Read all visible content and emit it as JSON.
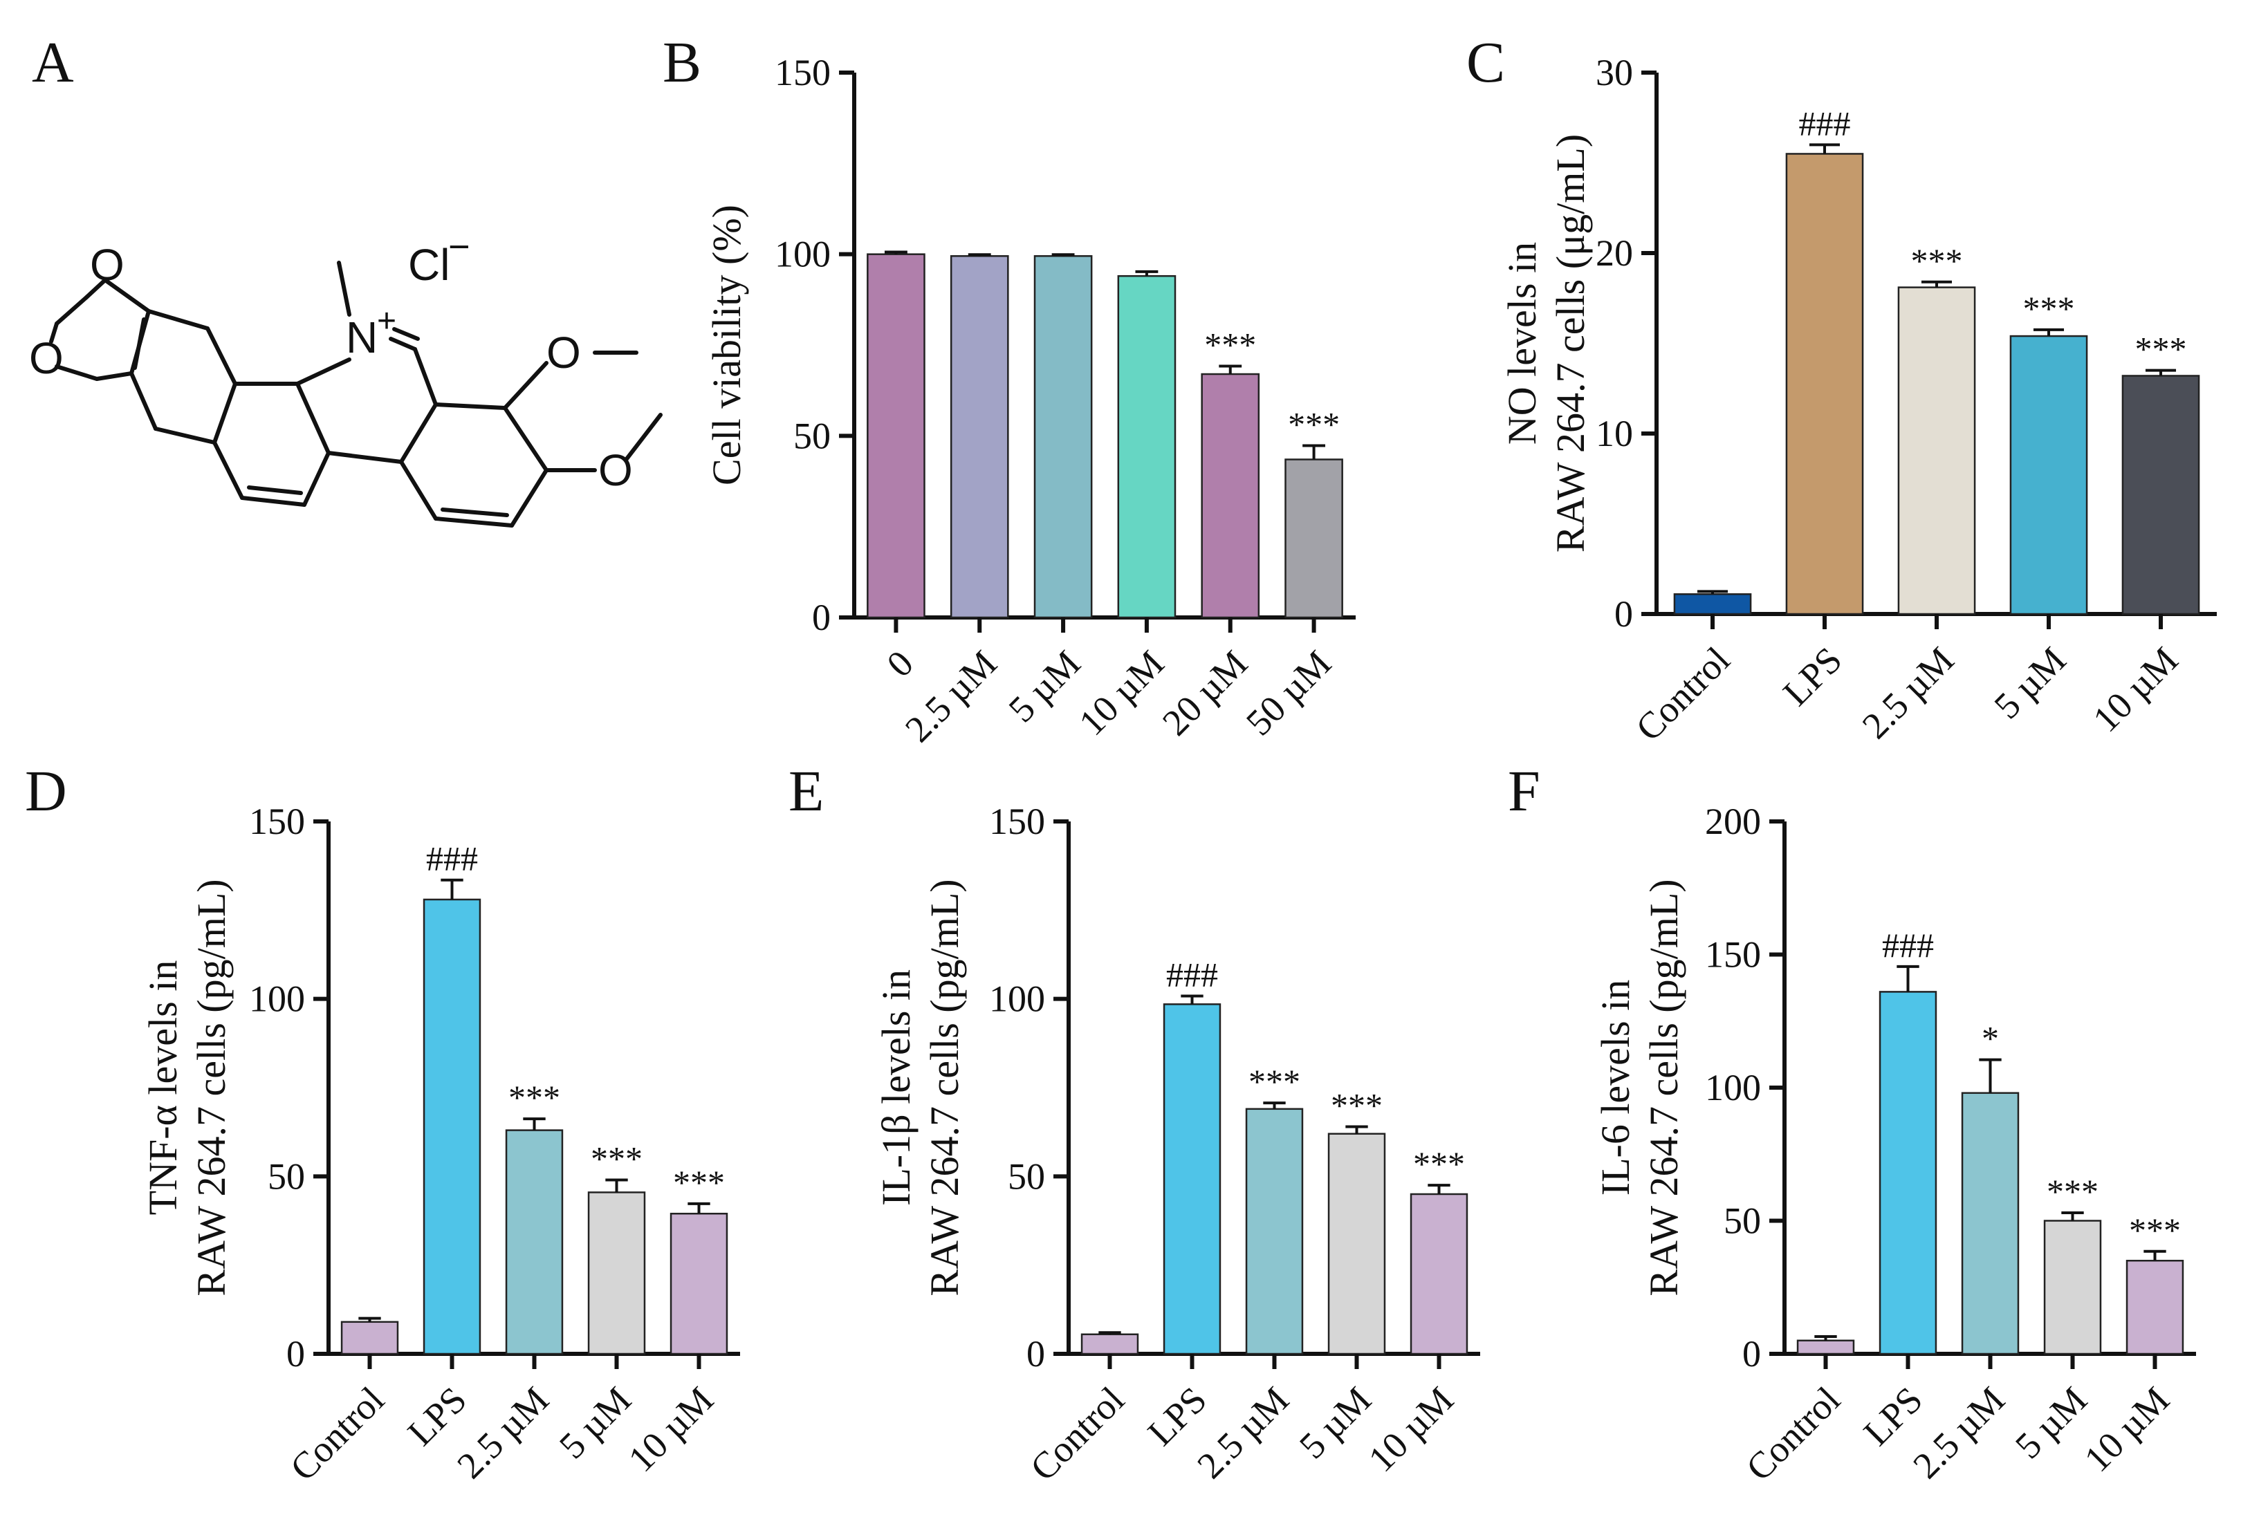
{
  "panel_labels": [
    "A",
    "B",
    "C",
    "D",
    "E",
    "F"
  ],
  "structure": {
    "chloride": "Cl",
    "nitrogen": "N",
    "plus": "+",
    "minus": "−",
    "oxygen": "O"
  },
  "chart_data": [
    {
      "panel": "B",
      "type": "bar",
      "title": "",
      "ylabel_lines": [
        "Cell viability (%)"
      ],
      "categories": [
        "0",
        "2.5 µM",
        "5 µM",
        "10 µM",
        "20 µM",
        "50 µM"
      ],
      "values": [
        100,
        99.5,
        99.5,
        94,
        67,
        43.5
      ],
      "errors": [
        0.6,
        0.4,
        0.4,
        1.2,
        2.2,
        3.8
      ],
      "sig": [
        "",
        "",
        "",
        "",
        "***",
        "***"
      ],
      "colors": [
        "#b07fab",
        "#a2a3c6",
        "#84bbc6",
        "#66d6c3",
        "#b07fab",
        "#a2a2a8"
      ],
      "ylim": [
        0,
        150
      ],
      "yticks": [
        0,
        50,
        100,
        150
      ],
      "xlabel": ""
    },
    {
      "panel": "C",
      "type": "bar",
      "title": "",
      "ylabel_lines": [
        "NO levels in",
        "RAW 264.7 cells (μg/mL)"
      ],
      "categories": [
        "Control",
        "LPS",
        "2.5 µM",
        "5 µM",
        "10 µM"
      ],
      "values": [
        1.1,
        25.5,
        18.1,
        15.4,
        13.2
      ],
      "errors": [
        0.15,
        0.5,
        0.3,
        0.35,
        0.3
      ],
      "sig": [
        "",
        "###",
        "***",
        "***",
        "***"
      ],
      "colors": [
        "#0f57a4",
        "#c49a6c",
        "#e3ded3",
        "#46b1cf",
        "#4b4e57"
      ],
      "ylim": [
        0,
        30
      ],
      "yticks": [
        0,
        10,
        20,
        30
      ],
      "xlabel": ""
    },
    {
      "panel": "D",
      "type": "bar",
      "title": "",
      "ylabel_lines": [
        "TNF-α levels in",
        "RAW 264.7 cells (pg/mL)"
      ],
      "categories": [
        "Control",
        "LPS",
        "2.5 µM",
        "5 µM",
        "10 µM"
      ],
      "values": [
        9,
        128,
        63,
        45.5,
        39.5
      ],
      "errors": [
        1,
        5.5,
        3.2,
        3.5,
        2.8
      ],
      "sig": [
        "",
        "###",
        "***",
        "***",
        "***"
      ],
      "colors": [
        "#c9b1d0",
        "#4fc4e8",
        "#8cc5cf",
        "#d6d6d6",
        "#c9b1d0"
      ],
      "ylim": [
        0,
        150
      ],
      "yticks": [
        0,
        50,
        100,
        150
      ],
      "xlabel": ""
    },
    {
      "panel": "E",
      "type": "bar",
      "title": "",
      "ylabel_lines": [
        "IL-1β levels in",
        "RAW 264.7 cells (pg/mL)"
      ],
      "categories": [
        "Control",
        "LPS",
        "2.5 µM",
        "5 µM",
        "10 µM"
      ],
      "values": [
        5.5,
        98.5,
        69,
        62,
        45
      ],
      "errors": [
        0.5,
        2.3,
        1.7,
        2,
        2.5
      ],
      "sig": [
        "",
        "###",
        "***",
        "***",
        "***"
      ],
      "colors": [
        "#c9b1d0",
        "#4fc4e8",
        "#8cc5cf",
        "#d6d6d6",
        "#c9b1d0"
      ],
      "ylim": [
        0,
        150
      ],
      "yticks": [
        0,
        50,
        100,
        150
      ],
      "xlabel": ""
    },
    {
      "panel": "F",
      "type": "bar",
      "title": "",
      "ylabel_lines": [
        "IL-6 levels in",
        "RAW 264.7 cells (pg/mL)"
      ],
      "categories": [
        "Control",
        "LPS",
        "2.5 µM",
        "5 µM",
        "10 µM"
      ],
      "values": [
        5,
        136,
        98,
        50,
        35
      ],
      "errors": [
        1.5,
        9.5,
        12.5,
        3,
        3.5
      ],
      "sig": [
        "",
        "###",
        "*",
        "***",
        "***"
      ],
      "colors": [
        "#c9b1d0",
        "#4fc4e8",
        "#8cc5cf",
        "#d6d6d6",
        "#c9b1d0"
      ],
      "ylim": [
        0,
        200
      ],
      "yticks": [
        0,
        50,
        100,
        150,
        200
      ],
      "xlabel": ""
    }
  ]
}
